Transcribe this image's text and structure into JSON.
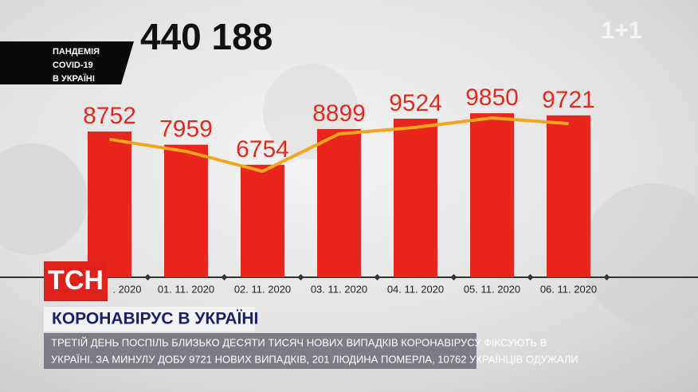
{
  "chart_data": {
    "type": "bar",
    "categories": [
      ". 2020",
      "01. 11. 2020",
      "02. 11. 2020",
      "03. 11. 2020",
      "04. 11. 2020",
      "05. 11. 2020",
      "06. 11. 2020"
    ],
    "values": [
      8752,
      7959,
      6754,
      8899,
      9524,
      9850,
      9721
    ],
    "color": "#e8261c",
    "line": {
      "color": "#f5a51e",
      "values": [
        8280,
        7560,
        6360,
        8610,
        9000,
        9570,
        9230
      ]
    }
  },
  "overlay": {
    "label_lines": [
      "ПАНДЕМІЯ",
      "COVID-19",
      "В УКРАЇНІ"
    ],
    "total": "440 188",
    "logo": "ТСН",
    "headline": "КОРОНАВІРУС В УКРАЇНІ",
    "ticker_lines": [
      "ТРЕТІЙ ДЕНЬ ПОСПІЛЬ БЛИЗЬКО ДЕСЯТИ ТИСЯЧ НОВИХ ВИПАДКІВ КОРОНАВІРУСУ ФІКСУЮТЬ В",
      "УКРАЇНІ. ЗА МИНУЛУ ДОБУ 9721 НОВИХ ВИПАДКІВ, 201 ЛЮДИНА ПОМЕРЛА, 10762 УКРАЇНЦІВ ОДУЖАЛИ"
    ],
    "watermark": "1+1"
  }
}
